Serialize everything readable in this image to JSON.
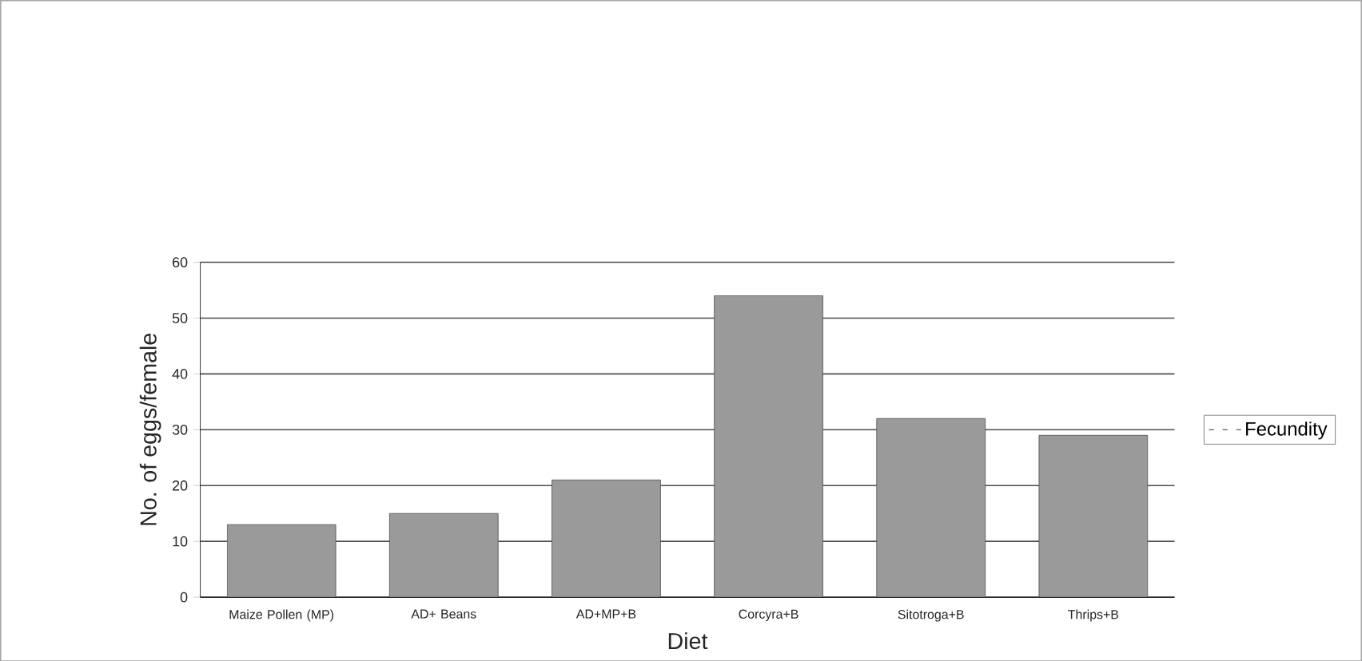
{
  "chart_data": {
    "type": "bar",
    "xlabel": "Diet",
    "ylabel": "No. of eggs/female",
    "categories": [
      "Maize Pollen (MP)",
      "AD+ Beans",
      "AD+MP+B",
      "Corcyra+B",
      "Sitotroga+B",
      "Thrips+B"
    ],
    "series": [
      {
        "name": "Fecundity",
        "color": "#9a9a9a",
        "values": [
          13,
          15,
          21,
          54,
          32,
          29
        ]
      }
    ],
    "ylim": [
      0,
      60
    ],
    "yticks": [
      0,
      10,
      20,
      30,
      40,
      50,
      60
    ],
    "grid": "y",
    "legend": "right"
  }
}
